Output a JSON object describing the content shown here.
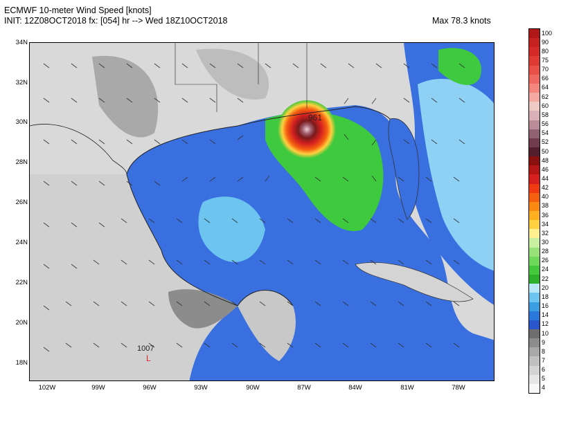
{
  "header": {
    "line1": "ECMWF 10-meter Wind Speed [knots]",
    "line2": "INIT: 12Z08OCT2018 fx: [054] hr --> Wed 18Z10OCT2018",
    "max": "Max 78.3 knots"
  },
  "map": {
    "lat_labels": [
      "34N",
      "32N",
      "30N",
      "28N",
      "26N",
      "24N",
      "22N",
      "20N",
      "18N"
    ],
    "lon_labels": [
      "102W",
      "99W",
      "96W",
      "93W",
      "90W",
      "87W",
      "84W",
      "81W",
      "78W"
    ],
    "annotations": {
      "low_pressure_value": "1007",
      "low_pressure_symbol": "L",
      "storm_center_value": "961"
    },
    "colors": {
      "land_calm": "#d8d8d8",
      "ocean_blue": "#3a6fe0",
      "light_blue": "#8fd0f5",
      "green": "#3ec93e",
      "storm_red": "#c0302a"
    }
  },
  "colorbar": {
    "labels": [
      "100",
      "90",
      "80",
      "75",
      "70",
      "66",
      "64",
      "62",
      "60",
      "58",
      "56",
      "54",
      "52",
      "50",
      "48",
      "46",
      "44",
      "42",
      "40",
      "38",
      "36",
      "34",
      "32",
      "30",
      "28",
      "26",
      "24",
      "22",
      "20",
      "18",
      "16",
      "14",
      "12",
      "10",
      "9",
      "8",
      "7",
      "6",
      "5",
      "4"
    ],
    "colors": [
      "#b01818",
      "#c62020",
      "#d42a2a",
      "#e03a34",
      "#e85048",
      "#f06a62",
      "#f5867e",
      "#f4a8a2",
      "#eecac4",
      "#d9b0b6",
      "#b98c98",
      "#906272",
      "#6e3c4c",
      "#551e2c",
      "#8a1010",
      "#b41616",
      "#d62020",
      "#ef3a14",
      "#f56010",
      "#fb8a12",
      "#ffb020",
      "#ffd040",
      "#fff090",
      "#c8f0a0",
      "#98e078",
      "#6ed85a",
      "#46c83c",
      "#2cb02c",
      "#b8e8fa",
      "#6cc4ef",
      "#3a9ee0",
      "#2a78dc",
      "#2a56cc",
      "#6e6e6e",
      "#8c8c8c",
      "#a8a8a8",
      "#c0c0c0",
      "#d4d4d4",
      "#e6e6e6",
      "#f8f8f8"
    ]
  }
}
